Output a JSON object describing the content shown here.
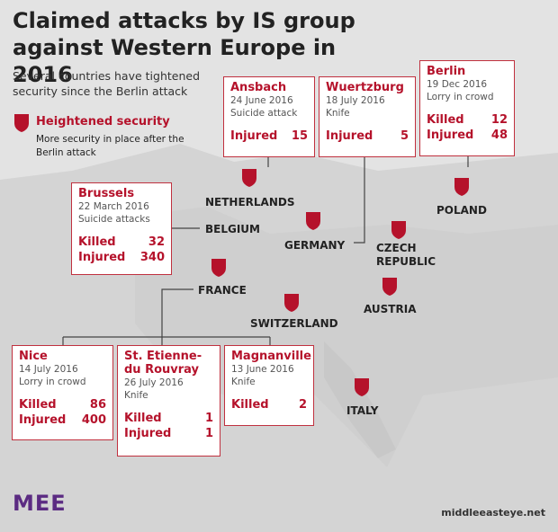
{
  "title": "Claimed attacks by IS group against Western Europe in 2016",
  "subtitle": "Several countries have tightened security since the Berlin attack",
  "legend": {
    "label": "Heightened security",
    "description": "More security in place after the Berlin attack"
  },
  "countries": [
    "NETHERLANDS",
    "BELGIUM",
    "GERMANY",
    "CZECH REPUBLIC",
    "POLAND",
    "FRANCE",
    "SWITZERLAND",
    "AUSTRIA",
    "ITALY"
  ],
  "attacks": [
    {
      "city": "Ansbach",
      "date": "24 June 2016",
      "type": "Suicide attack",
      "stats": [
        {
          "label": "Injured",
          "value": 15
        }
      ]
    },
    {
      "city": "Wuertzburg",
      "date": "18 July 2016",
      "type": "Knife",
      "stats": [
        {
          "label": "Injured",
          "value": 5
        }
      ]
    },
    {
      "city": "Berlin",
      "date": "19 Dec 2016",
      "type": "Lorry in crowd",
      "stats": [
        {
          "label": "Killed",
          "value": 12
        },
        {
          "label": "Injured",
          "value": 48
        }
      ]
    },
    {
      "city": "Brussels",
      "date": "22 March 2016",
      "type": "Suicide attacks",
      "stats": [
        {
          "label": "Killed",
          "value": 32
        },
        {
          "label": "Injured",
          "value": 340
        }
      ]
    },
    {
      "city": "Nice",
      "date": "14 July 2016",
      "type": "Lorry in crowd",
      "stats": [
        {
          "label": "Killed",
          "value": 86
        },
        {
          "label": "Injured",
          "value": 400
        }
      ]
    },
    {
      "city": "St. Etienne-du Rouvray",
      "date": "26 July 2016",
      "type": "Knife",
      "stats": [
        {
          "label": "Killed",
          "value": 1
        },
        {
          "label": "Injured",
          "value": 1
        }
      ]
    },
    {
      "city": "Magnanville",
      "date": "13 June 2016",
      "type": "Knife",
      "stats": [
        {
          "label": "Killed",
          "value": 2
        }
      ]
    }
  ],
  "footer": {
    "brand": "MEE",
    "website": "middleeasteye.net"
  }
}
